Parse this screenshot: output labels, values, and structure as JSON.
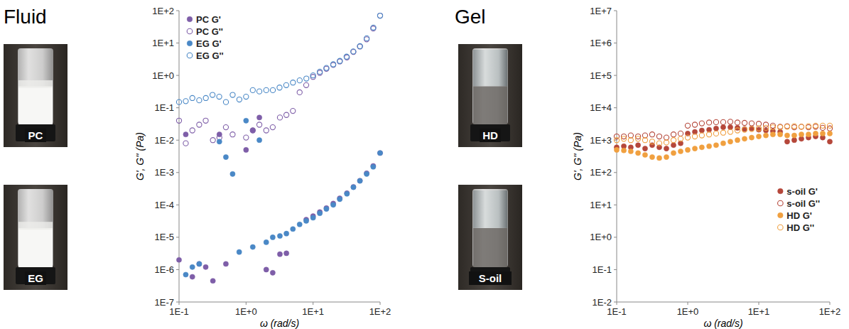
{
  "headings": [
    "Fluid",
    "Gel"
  ],
  "photo_labels": [
    [
      "PC",
      "EG"
    ],
    [
      "HD",
      "S-oil"
    ]
  ],
  "chart_data": [
    {
      "type": "scatter",
      "log": true,
      "grid": false,
      "legend": "top-left",
      "x_label": "ω (rad/s)",
      "y_label": "G', G'' (Pa)",
      "xlim": [
        0.1,
        100
      ],
      "xticks": [
        {
          "value": 0.1,
          "label": "1E-1"
        },
        {
          "value": 1,
          "label": "1E+0"
        },
        {
          "value": 10,
          "label": "1E+1"
        },
        {
          "value": 100,
          "label": "1E+2"
        }
      ],
      "ylim": [
        1e-07,
        100
      ],
      "yticks": [
        {
          "value": 1e-07,
          "label": "1E-7"
        },
        {
          "value": 1e-06,
          "label": "1E-6"
        },
        {
          "value": 1e-05,
          "label": "1E-5"
        },
        {
          "value": 0.0001,
          "label": "1E-4"
        },
        {
          "value": 0.001,
          "label": "1E-3"
        },
        {
          "value": 0.01,
          "label": "1E-2"
        },
        {
          "value": 0.1,
          "label": "1E-1"
        },
        {
          "value": 1,
          "label": "1E+0"
        },
        {
          "value": 10,
          "label": "1E+1"
        },
        {
          "value": 100,
          "label": "1E+2"
        }
      ],
      "series": [
        {
          "name": "PC G'",
          "color": "#7e5ea8",
          "marker": "circle",
          "x": [
            0.1,
            0.126,
            0.158,
            0.2,
            0.25,
            0.32,
            0.4,
            0.5,
            1,
            1.26,
            1.58,
            2,
            2.5,
            3.2,
            4,
            7.9,
            10,
            12.6,
            15.8,
            20,
            25,
            32,
            40,
            50,
            63,
            79,
            100
          ],
          "values": [
            2e-06,
            0.015,
            6e-07,
            1.5e-06,
            1.2e-06,
            4.5e-07,
            0.015,
            1.5e-06,
            0.005,
            0.02,
            0.05,
            1e-06,
            8e-07,
            3e-06,
            3.2e-06,
            3.5e-05,
            4.5e-05,
            6e-05,
            8e-05,
            0.00011,
            0.00016,
            0.00023,
            0.00036,
            0.00056,
            0.00095,
            0.0016,
            0.004
          ]
        },
        {
          "name": "PC G''",
          "color": "#7e5ea8",
          "marker": "open-circle",
          "x": [
            0.1,
            0.126,
            0.158,
            0.2,
            0.25,
            0.32,
            0.4,
            0.5,
            0.63,
            1,
            1.26,
            1.58,
            2,
            2.5,
            3.2,
            4,
            5,
            6.3,
            7.9,
            10,
            12.6,
            15.8,
            20,
            25,
            32,
            40,
            50,
            63,
            79,
            100
          ],
          "values": [
            0.04,
            0.008,
            0.02,
            0.03,
            0.04,
            0.01,
            0.012,
            0.025,
            0.015,
            0.012,
            0.02,
            0.03,
            0.02,
            0.025,
            0.05,
            0.06,
            0.08,
            0.3,
            0.5,
            0.9,
            1.2,
            1.6,
            2.1,
            2.7,
            3.6,
            5.3,
            7.8,
            13,
            28,
            70
          ]
        },
        {
          "name": "EG G'",
          "color": "#4a88c6",
          "marker": "circle",
          "x": [
            0.126,
            0.158,
            0.2,
            0.4,
            0.5,
            0.63,
            0.79,
            1,
            1.26,
            1.58,
            2,
            2.5,
            3.2,
            4,
            5,
            6.3,
            7.9,
            10,
            12.6,
            15.8,
            20,
            25,
            32,
            40,
            50,
            63,
            79,
            100
          ],
          "values": [
            7e-07,
            1.2e-06,
            1.5e-06,
            0.009,
            0.003,
            0.0009,
            3.5e-06,
            0.04,
            5e-06,
            0.01,
            7e-06,
            1e-05,
            1.1e-05,
            1.3e-05,
            1.8e-05,
            2.5e-05,
            3.2e-05,
            4e-05,
            5.5e-05,
            7.5e-05,
            0.0001,
            0.00015,
            0.00022,
            0.00035,
            0.00055,
            0.0009,
            0.0015,
            0.004
          ]
        },
        {
          "name": "EG G''",
          "color": "#4a88c6",
          "marker": "open-circle",
          "x": [
            0.1,
            0.126,
            0.158,
            0.2,
            0.251,
            0.316,
            0.398,
            0.501,
            0.631,
            0.794,
            1,
            1.26,
            1.58,
            2,
            2.51,
            3.16,
            3.98,
            5.01,
            6.31,
            7.94,
            10,
            12.6,
            15.8,
            20,
            25.1,
            31.6,
            39.8,
            50.1,
            63.1,
            79.4,
            100
          ],
          "values": [
            0.15,
            0.16,
            0.2,
            0.17,
            0.2,
            0.25,
            0.22,
            0.15,
            0.25,
            0.18,
            0.22,
            0.35,
            0.32,
            0.35,
            0.35,
            0.42,
            0.5,
            0.6,
            0.7,
            0.8,
            1,
            1.3,
            1.7,
            2.2,
            2.8,
            3.8,
            5.5,
            8,
            14,
            30,
            70
          ]
        }
      ]
    },
    {
      "type": "scatter",
      "log": true,
      "grid": false,
      "legend": "bottom-right",
      "x_label": "ω (rad/s)",
      "y_label": "G', G'' (Pa)",
      "xlim": [
        0.1,
        100
      ],
      "xticks": [
        {
          "value": 0.1,
          "label": "1E-1"
        },
        {
          "value": 1,
          "label": "1E+0"
        },
        {
          "value": 10,
          "label": "1E+1"
        },
        {
          "value": 100,
          "label": "1E+2"
        }
      ],
      "ylim": [
        0.01,
        10000000.0
      ],
      "yticks": [
        {
          "value": 0.01,
          "label": "1E-2"
        },
        {
          "value": 0.1,
          "label": "1E-1"
        },
        {
          "value": 1,
          "label": "1E+0"
        },
        {
          "value": 10,
          "label": "1E+1"
        },
        {
          "value": 100,
          "label": "1E+2"
        },
        {
          "value": 1000,
          "label": "1E+3"
        },
        {
          "value": 10000,
          "label": "1E+4"
        },
        {
          "value": 100000,
          "label": "1E+5"
        },
        {
          "value": 1000000,
          "label": "1E+6"
        },
        {
          "value": 10000000,
          "label": "1E+7"
        }
      ],
      "series": [
        {
          "name": "s-oil G'",
          "color": "#b5473a",
          "marker": "circle",
          "x": [
            0.1,
            0.126,
            0.158,
            0.2,
            0.251,
            0.316,
            0.398,
            0.501,
            0.631,
            0.794,
            1,
            1.26,
            1.58,
            2,
            2.51,
            3.16,
            3.98,
            5.01,
            6.31,
            7.94,
            10,
            12.6,
            15.8,
            20,
            25.1,
            31.6,
            39.8,
            50.1,
            63.1,
            79.4,
            100
          ],
          "values": [
            600,
            650,
            600,
            700,
            550,
            700,
            600,
            550,
            700,
            800,
            1600,
            1800,
            2000,
            2100,
            2300,
            2500,
            2500,
            2400,
            2200,
            2300,
            2100,
            2000,
            1900,
            1800,
            900,
            1000,
            1100,
            1200,
            1300,
            1200,
            900
          ]
        },
        {
          "name": "s-oil G''",
          "color": "#b5473a",
          "marker": "open-circle",
          "x": [
            0.1,
            0.126,
            0.158,
            0.2,
            0.251,
            0.316,
            0.398,
            0.501,
            0.631,
            0.794,
            1,
            1.26,
            1.58,
            2,
            2.51,
            3.16,
            3.98,
            5.01,
            6.31,
            7.94,
            10,
            12.6,
            15.8,
            20,
            25.1,
            31.6,
            39.8,
            50.1,
            63.1,
            79.4,
            100
          ],
          "values": [
            1300,
            1300,
            1400,
            1300,
            1400,
            1500,
            1300,
            1200,
            1500,
            1600,
            2800,
            3000,
            3300,
            3500,
            3600,
            3600,
            3700,
            3500,
            3400,
            3300,
            3200,
            3000,
            2800,
            2600,
            2700,
            2500,
            2600,
            2500,
            2600,
            2400,
            2300
          ]
        },
        {
          "name": "HD G'",
          "color": "#f0a040",
          "marker": "circle",
          "x": [
            0.1,
            0.126,
            0.158,
            0.2,
            0.251,
            0.316,
            0.398,
            0.501,
            0.631,
            0.794,
            1,
            1.26,
            1.58,
            2,
            2.51,
            3.16,
            3.98,
            5.01,
            6.31,
            7.94,
            10,
            12.6,
            15.8,
            20,
            25.1,
            31.6,
            39.8,
            50.1,
            63.1,
            79.4,
            100
          ],
          "values": [
            500,
            480,
            450,
            400,
            350,
            300,
            280,
            300,
            400,
            450,
            500,
            550,
            600,
            650,
            700,
            800,
            900,
            1000,
            1100,
            1200,
            1300,
            1400,
            1500,
            1500,
            1400,
            1400,
            1500,
            1500,
            1600,
            1600,
            1600
          ]
        },
        {
          "name": "HD G''",
          "color": "#f0a040",
          "marker": "open-circle",
          "x": [
            0.1,
            0.126,
            0.158,
            0.2,
            0.251,
            0.316,
            0.398,
            0.501,
            0.631,
            0.794,
            1,
            1.26,
            1.58,
            2,
            2.51,
            3.16,
            3.98,
            5.01,
            6.31,
            7.94,
            10,
            12.6,
            15.8,
            20,
            25.1,
            31.6,
            39.8,
            50.1,
            63.1,
            79.4,
            100
          ],
          "values": [
            1000,
            1100,
            1000,
            1100,
            1000,
            900,
            800,
            850,
            1000,
            1100,
            1200,
            1300,
            1400,
            1500,
            1600,
            1700,
            1800,
            2000,
            2100,
            2200,
            2300,
            2400,
            2500,
            2500,
            2600,
            2700,
            2600,
            2700,
            2800,
            2800,
            2800
          ]
        }
      ]
    }
  ]
}
